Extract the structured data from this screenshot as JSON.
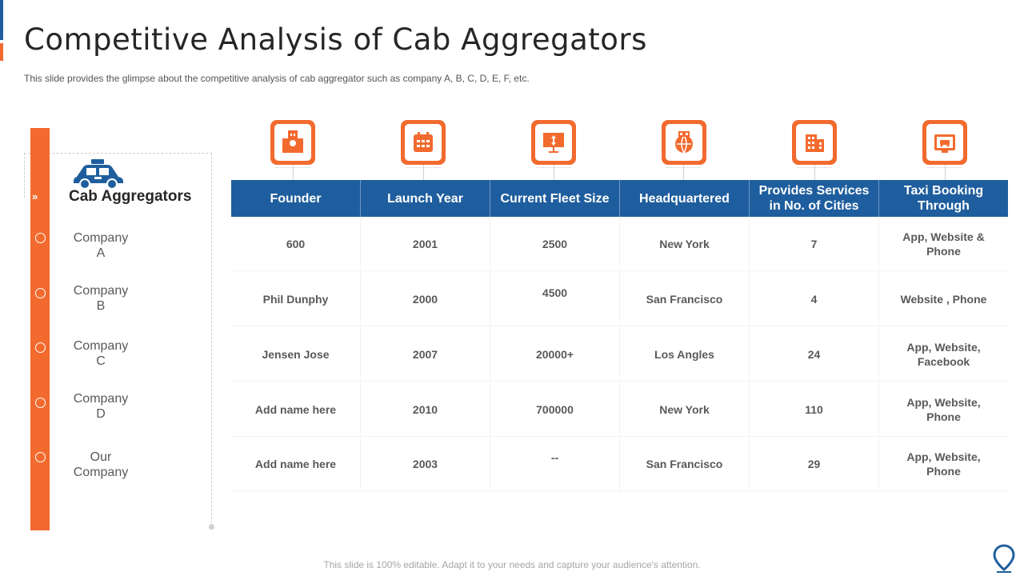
{
  "slide": {
    "title": "Competitive Analysis of Cab Aggregators",
    "subtitle": "This slide provides  the glimpse about the competitive  analysis of cab aggregator  such as company A, B, C, D, E, F, etc.",
    "footer": "This slide is 100% editable. Adapt it to your needs and capture your audience's attention."
  },
  "sidebar": {
    "heading": "Cab Aggregators",
    "chevrons": "»",
    "companies": [
      {
        "line1": "Company",
        "line2": "A"
      },
      {
        "line1": "Company",
        "line2": "B"
      },
      {
        "line1": "Company",
        "line2": "C"
      },
      {
        "line1": "Company",
        "line2": "D"
      },
      {
        "line1": "Our",
        "line2": "Company"
      }
    ]
  },
  "table": {
    "headers": [
      {
        "line1": "Founder",
        "line2": ""
      },
      {
        "line1": "Launch Year",
        "line2": ""
      },
      {
        "line1": "Current Fleet Size",
        "line2": ""
      },
      {
        "line1": "Headquartered",
        "line2": ""
      },
      {
        "line1": "Provides Services",
        "line2": "in No. of Cities"
      },
      {
        "line1": "Taxi Booking",
        "line2": "Through"
      }
    ],
    "rows": [
      {
        "founder": "600",
        "year": "2001",
        "fleet": "2500",
        "hq": "New York",
        "cities": "7",
        "booking1": "App, Website &",
        "booking2": "Phone"
      },
      {
        "founder": "Phil Dunphy",
        "year": "2000",
        "fleet": "4500",
        "hq": "San Francisco",
        "cities": "4",
        "booking1": "Website , Phone",
        "booking2": ""
      },
      {
        "founder": "Jensen Jose",
        "year": "2007",
        "fleet": "20000+",
        "hq": "Los Angles",
        "cities": "24",
        "booking1": "App, Website,",
        "booking2": "Facebook"
      },
      {
        "founder": "Add  name here",
        "year": "2010",
        "fleet": "700000",
        "hq": "New York",
        "cities": "110",
        "booking1": "App, Website,",
        "booking2": "Phone"
      },
      {
        "founder": "Add  name here",
        "year": "2003",
        "fleet": "--",
        "hq": "San Francisco",
        "cities": "29",
        "booking1": "App, Website,",
        "booking2": "Phone"
      }
    ]
  },
  "icons": [
    "founder-building-icon",
    "calendar-icon",
    "presentation-icon",
    "globe-headquarters-icon",
    "city-buildings-icon",
    "taxi-booking-screen-icon"
  ],
  "colors": {
    "accent": "#f26a2e",
    "primary": "#1f5e9e"
  }
}
